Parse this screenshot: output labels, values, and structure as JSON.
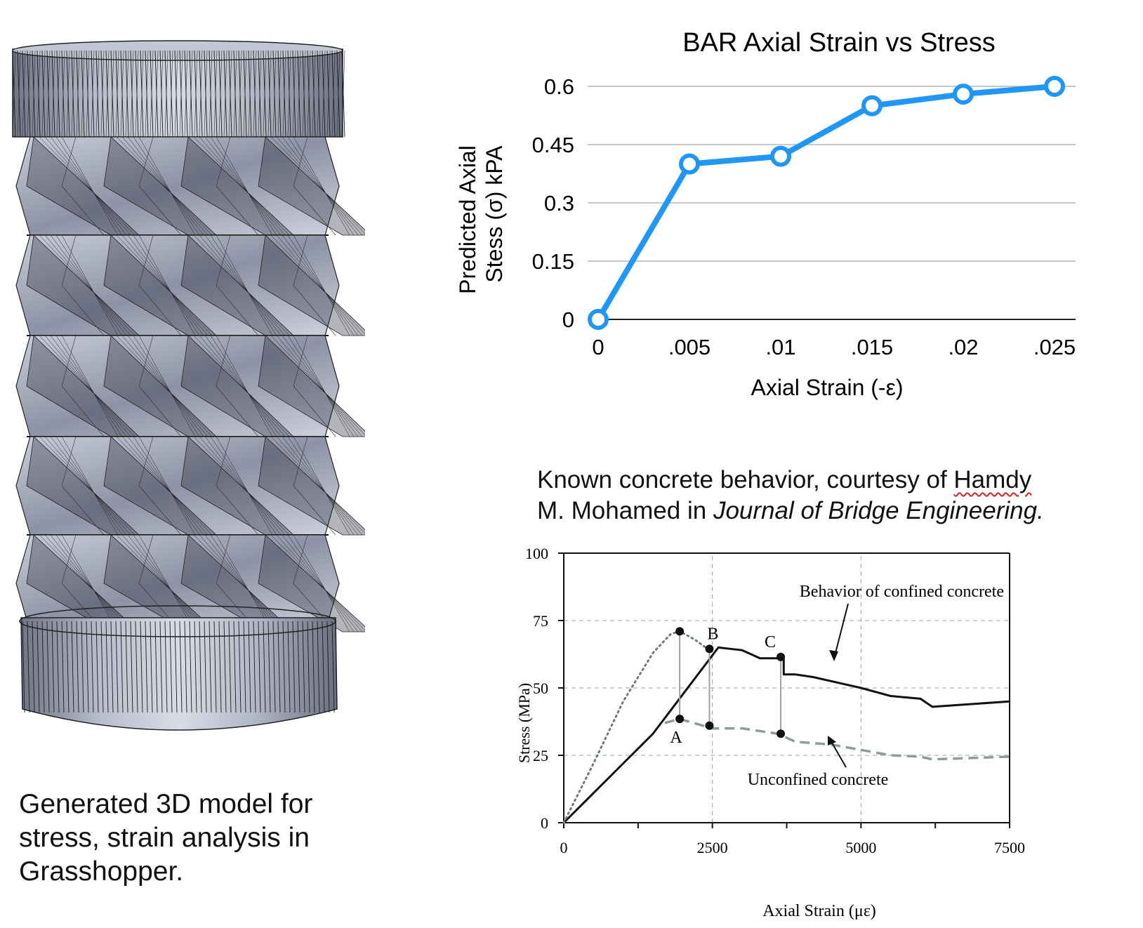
{
  "model": {
    "caption": "Generated 3D model for stress, strain analysis in Grasshopper."
  },
  "chart1": {
    "chart_data": {
      "type": "line",
      "title": "BAR Axial Strain vs Stress",
      "xlabel": "Axial Strain (-ε)",
      "ylabel_line1": "Predicted Axial",
      "ylabel_line2": "Stess (σ) kPA",
      "categories": [
        "0",
        ".005",
        ".01",
        ".015",
        ".02",
        ".025"
      ],
      "series": [
        {
          "values": [
            0,
            0.4,
            0.42,
            0.55,
            0.58,
            0.6
          ]
        }
      ],
      "yticks": [
        "0",
        "0.15",
        "0.3",
        "0.45",
        "0.6"
      ],
      "ylim": [
        0,
        0.6
      ],
      "grid": true,
      "color": "#2196f3"
    }
  },
  "reference": {
    "caption_plain": "Known concrete behavior, courtesy of ",
    "caption_name_underlined": "Hamdy",
    "caption_name_rest": "M. Mohamed in ",
    "caption_journal": "Journal of Bridge Engineering."
  },
  "chart2": {
    "chart_data": {
      "type": "line",
      "xlabel": "Axial Strain (με)",
      "ylabel": "Stress (MPa)",
      "xticks": [
        "0",
        "2500",
        "5000",
        "7500"
      ],
      "yticks": [
        "0",
        "25",
        "50",
        "75",
        "100"
      ],
      "xlim": [
        0,
        7500
      ],
      "ylim": [
        0,
        100
      ],
      "grid": true,
      "series": [
        {
          "name": "Behavior of confined concrete",
          "style": "solid",
          "x": [
            0,
            1500,
            2600,
            2800,
            3000,
            3300,
            3600,
            3700,
            3700,
            3900,
            4200,
            4600,
            5000,
            5500,
            6000,
            6200,
            7500
          ],
          "y": [
            0,
            33,
            65,
            64.5,
            64,
            61,
            61,
            61.5,
            55,
            55,
            54,
            52,
            50,
            47,
            46,
            43,
            45
          ]
        },
        {
          "name": "Unconfined concrete",
          "style": "dashed",
          "x": [
            1700,
            1950,
            2500,
            3000,
            3600,
            3900,
            4500,
            5000,
            5500,
            6000,
            6200,
            7500
          ],
          "y": [
            37,
            38.5,
            35,
            35,
            33,
            30,
            29,
            27,
            25,
            24.5,
            23.5,
            24.5
          ]
        },
        {
          "name": "",
          "style": "dotted",
          "x": [
            0,
            500,
            1000,
            1500,
            1800,
            1950,
            2200,
            2450
          ],
          "y": [
            0,
            22,
            45,
            63,
            70,
            71,
            68,
            64
          ]
        }
      ],
      "markers": [
        {
          "label": "A",
          "x": 1950,
          "y_top": 71,
          "y_bottom": 38.5
        },
        {
          "label": "B",
          "x": 2450,
          "y_top": 64.5,
          "y_bottom": 36
        },
        {
          "label": "C",
          "x": 3650,
          "y_top": 61.5,
          "y_bottom": 33
        }
      ],
      "annotations": [
        "Behavior of confined concrete",
        "Unconfined concrete"
      ]
    }
  }
}
